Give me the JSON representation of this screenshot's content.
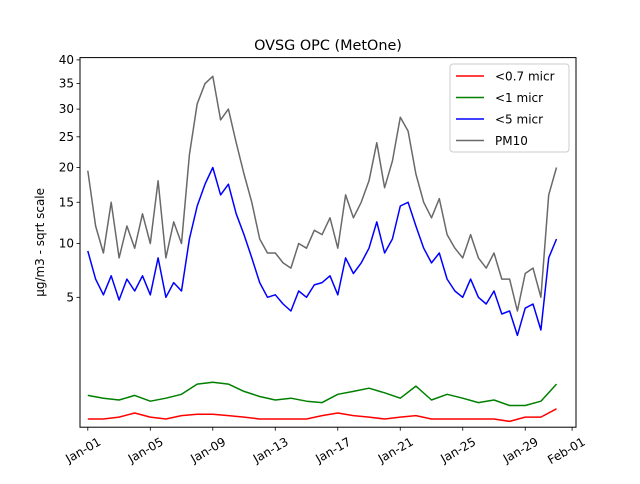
{
  "chart_data": {
    "type": "line",
    "title": "OVSG OPC (MetOne)",
    "xlabel": "",
    "ylabel": "µg/m3 - sqrt scale",
    "y_scale": "sqrt",
    "ylim": [
      0,
      40.5
    ],
    "xlim": [
      "2024-12-31T12:00",
      "2025-02-01T06:00"
    ],
    "x_ticks": [
      "2025-01-01",
      "2025-01-05",
      "2025-01-09",
      "2025-01-13",
      "2025-01-17",
      "2025-01-21",
      "2025-01-25",
      "2025-01-29",
      "2025-02-01"
    ],
    "x_tick_labels": [
      "Jan-01",
      "Jan-05",
      "Jan-09",
      "Jan-13",
      "Jan-17",
      "Jan-21",
      "Jan-25",
      "Jan-29",
      "Feb-01"
    ],
    "y_ticks": [
      5,
      10,
      15,
      20,
      25,
      30,
      35,
      40
    ],
    "legend_position": "top-right",
    "grid": false,
    "series": [
      {
        "name": "<0.7 micr",
        "color": "#ff0000",
        "x": [
          "2025-01-01",
          "2025-01-02",
          "2025-01-03",
          "2025-01-04",
          "2025-01-05",
          "2025-01-06",
          "2025-01-07",
          "2025-01-08",
          "2025-01-09",
          "2025-01-10",
          "2025-01-11",
          "2025-01-12",
          "2025-01-13",
          "2025-01-14",
          "2025-01-15",
          "2025-01-16",
          "2025-01-17",
          "2025-01-18",
          "2025-01-19",
          "2025-01-20",
          "2025-01-21",
          "2025-01-22",
          "2025-01-23",
          "2025-01-24",
          "2025-01-25",
          "2025-01-26",
          "2025-01-27",
          "2025-01-28",
          "2025-01-29",
          "2025-01-30",
          "2025-01-31"
        ],
        "values": [
          0.02,
          0.02,
          0.03,
          0.06,
          0.03,
          0.02,
          0.04,
          0.05,
          0.05,
          0.04,
          0.03,
          0.02,
          0.02,
          0.02,
          0.02,
          0.04,
          0.06,
          0.04,
          0.03,
          0.02,
          0.03,
          0.04,
          0.02,
          0.02,
          0.02,
          0.02,
          0.02,
          0.01,
          0.03,
          0.03,
          0.1
        ]
      },
      {
        "name": "<1 micr",
        "color": "#008000",
        "x": [
          "2025-01-01",
          "2025-01-02",
          "2025-01-03",
          "2025-01-04",
          "2025-01-05",
          "2025-01-06",
          "2025-01-07",
          "2025-01-08",
          "2025-01-09",
          "2025-01-10",
          "2025-01-11",
          "2025-01-12",
          "2025-01-13",
          "2025-01-14",
          "2025-01-15",
          "2025-01-16",
          "2025-01-17",
          "2025-01-18",
          "2025-01-19",
          "2025-01-20",
          "2025-01-21",
          "2025-01-22",
          "2025-01-23",
          "2025-01-24",
          "2025-01-25",
          "2025-01-26",
          "2025-01-27",
          "2025-01-28",
          "2025-01-29",
          "2025-01-30",
          "2025-01-31"
        ],
        "values": [
          0.3,
          0.25,
          0.22,
          0.3,
          0.2,
          0.25,
          0.32,
          0.55,
          0.6,
          0.55,
          0.38,
          0.28,
          0.22,
          0.25,
          0.2,
          0.18,
          0.32,
          0.38,
          0.45,
          0.35,
          0.25,
          0.5,
          0.22,
          0.32,
          0.25,
          0.18,
          0.22,
          0.14,
          0.14,
          0.2,
          0.55
        ]
      },
      {
        "name": "<5 micr",
        "color": "#0000ff",
        "x": [
          "2025-01-01",
          "2025-01-01T12:00",
          "2025-01-02",
          "2025-01-02T12:00",
          "2025-01-03",
          "2025-01-03T12:00",
          "2025-01-04",
          "2025-01-04T12:00",
          "2025-01-05",
          "2025-01-05T12:00",
          "2025-01-06",
          "2025-01-06T12:00",
          "2025-01-07",
          "2025-01-07T12:00",
          "2025-01-08",
          "2025-01-08T12:00",
          "2025-01-09",
          "2025-01-09T12:00",
          "2025-01-10",
          "2025-01-10T12:00",
          "2025-01-11",
          "2025-01-11T12:00",
          "2025-01-12",
          "2025-01-12T12:00",
          "2025-01-13",
          "2025-01-13T12:00",
          "2025-01-14",
          "2025-01-14T12:00",
          "2025-01-15",
          "2025-01-15T12:00",
          "2025-01-16",
          "2025-01-16T12:00",
          "2025-01-17",
          "2025-01-17T12:00",
          "2025-01-18",
          "2025-01-18T12:00",
          "2025-01-19",
          "2025-01-19T12:00",
          "2025-01-20",
          "2025-01-20T12:00",
          "2025-01-21",
          "2025-01-21T12:00",
          "2025-01-22",
          "2025-01-22T12:00",
          "2025-01-23",
          "2025-01-23T12:00",
          "2025-01-24",
          "2025-01-24T12:00",
          "2025-01-25",
          "2025-01-25T12:00",
          "2025-01-26",
          "2025-01-26T12:00",
          "2025-01-27",
          "2025-01-27T12:00",
          "2025-01-28",
          "2025-01-28T12:00",
          "2025-01-29",
          "2025-01-29T12:00",
          "2025-01-30",
          "2025-01-30T12:00",
          "2025-01-31"
        ],
        "values": [
          9.2,
          6.5,
          5.2,
          6.8,
          4.8,
          6.5,
          5.5,
          6.8,
          5.2,
          8.5,
          5.0,
          6.2,
          5.5,
          10.5,
          14.5,
          17.5,
          20.0,
          16.0,
          17.5,
          13.5,
          11.0,
          8.5,
          6.2,
          5.0,
          5.2,
          4.5,
          4.0,
          5.5,
          5.0,
          6.0,
          6.2,
          6.8,
          5.2,
          8.5,
          7.0,
          8.0,
          9.5,
          12.5,
          9.0,
          10.5,
          14.5,
          15.0,
          12.0,
          9.5,
          8.0,
          9.0,
          6.5,
          5.5,
          5.0,
          6.5,
          5.0,
          4.5,
          5.5,
          3.8,
          4.0,
          2.5,
          4.2,
          4.5,
          2.8,
          8.5,
          10.5
        ]
      },
      {
        "name": "PM10",
        "color": "#696969",
        "x": [
          "2025-01-01",
          "2025-01-01T12:00",
          "2025-01-02",
          "2025-01-02T12:00",
          "2025-01-03",
          "2025-01-03T12:00",
          "2025-01-04",
          "2025-01-04T12:00",
          "2025-01-05",
          "2025-01-05T12:00",
          "2025-01-06",
          "2025-01-06T12:00",
          "2025-01-07",
          "2025-01-07T12:00",
          "2025-01-08",
          "2025-01-08T12:00",
          "2025-01-09",
          "2025-01-09T12:00",
          "2025-01-10",
          "2025-01-10T12:00",
          "2025-01-11",
          "2025-01-11T12:00",
          "2025-01-12",
          "2025-01-12T12:00",
          "2025-01-13",
          "2025-01-13T12:00",
          "2025-01-14",
          "2025-01-14T12:00",
          "2025-01-15",
          "2025-01-15T12:00",
          "2025-01-16",
          "2025-01-16T12:00",
          "2025-01-17",
          "2025-01-17T12:00",
          "2025-01-18",
          "2025-01-18T12:00",
          "2025-01-19",
          "2025-01-19T12:00",
          "2025-01-20",
          "2025-01-20T12:00",
          "2025-01-21",
          "2025-01-21T12:00",
          "2025-01-22",
          "2025-01-22T12:00",
          "2025-01-23",
          "2025-01-23T12:00",
          "2025-01-24",
          "2025-01-24T12:00",
          "2025-01-25",
          "2025-01-25T12:00",
          "2025-01-26",
          "2025-01-26T12:00",
          "2025-01-27",
          "2025-01-27T12:00",
          "2025-01-28",
          "2025-01-28T12:00",
          "2025-01-29",
          "2025-01-29T12:00",
          "2025-01-30",
          "2025-01-30T12:00",
          "2025-01-31"
        ],
        "values": [
          19.5,
          12.0,
          9.0,
          15.0,
          8.5,
          12.0,
          9.5,
          13.5,
          10.0,
          18.0,
          8.5,
          12.5,
          10.0,
          22.0,
          31.0,
          35.0,
          36.5,
          28.0,
          30.0,
          24.0,
          19.0,
          15.0,
          10.5,
          9.0,
          9.0,
          8.0,
          7.5,
          10.0,
          9.5,
          11.5,
          11.0,
          13.0,
          9.5,
          16.0,
          13.0,
          15.0,
          18.0,
          24.0,
          17.0,
          21.0,
          28.5,
          26.0,
          19.0,
          15.0,
          13.0,
          15.5,
          11.0,
          9.5,
          8.5,
          11.0,
          8.5,
          7.5,
          9.0,
          6.5,
          6.5,
          4.0,
          7.0,
          7.5,
          5.0,
          16.0,
          20.0
        ]
      }
    ]
  }
}
